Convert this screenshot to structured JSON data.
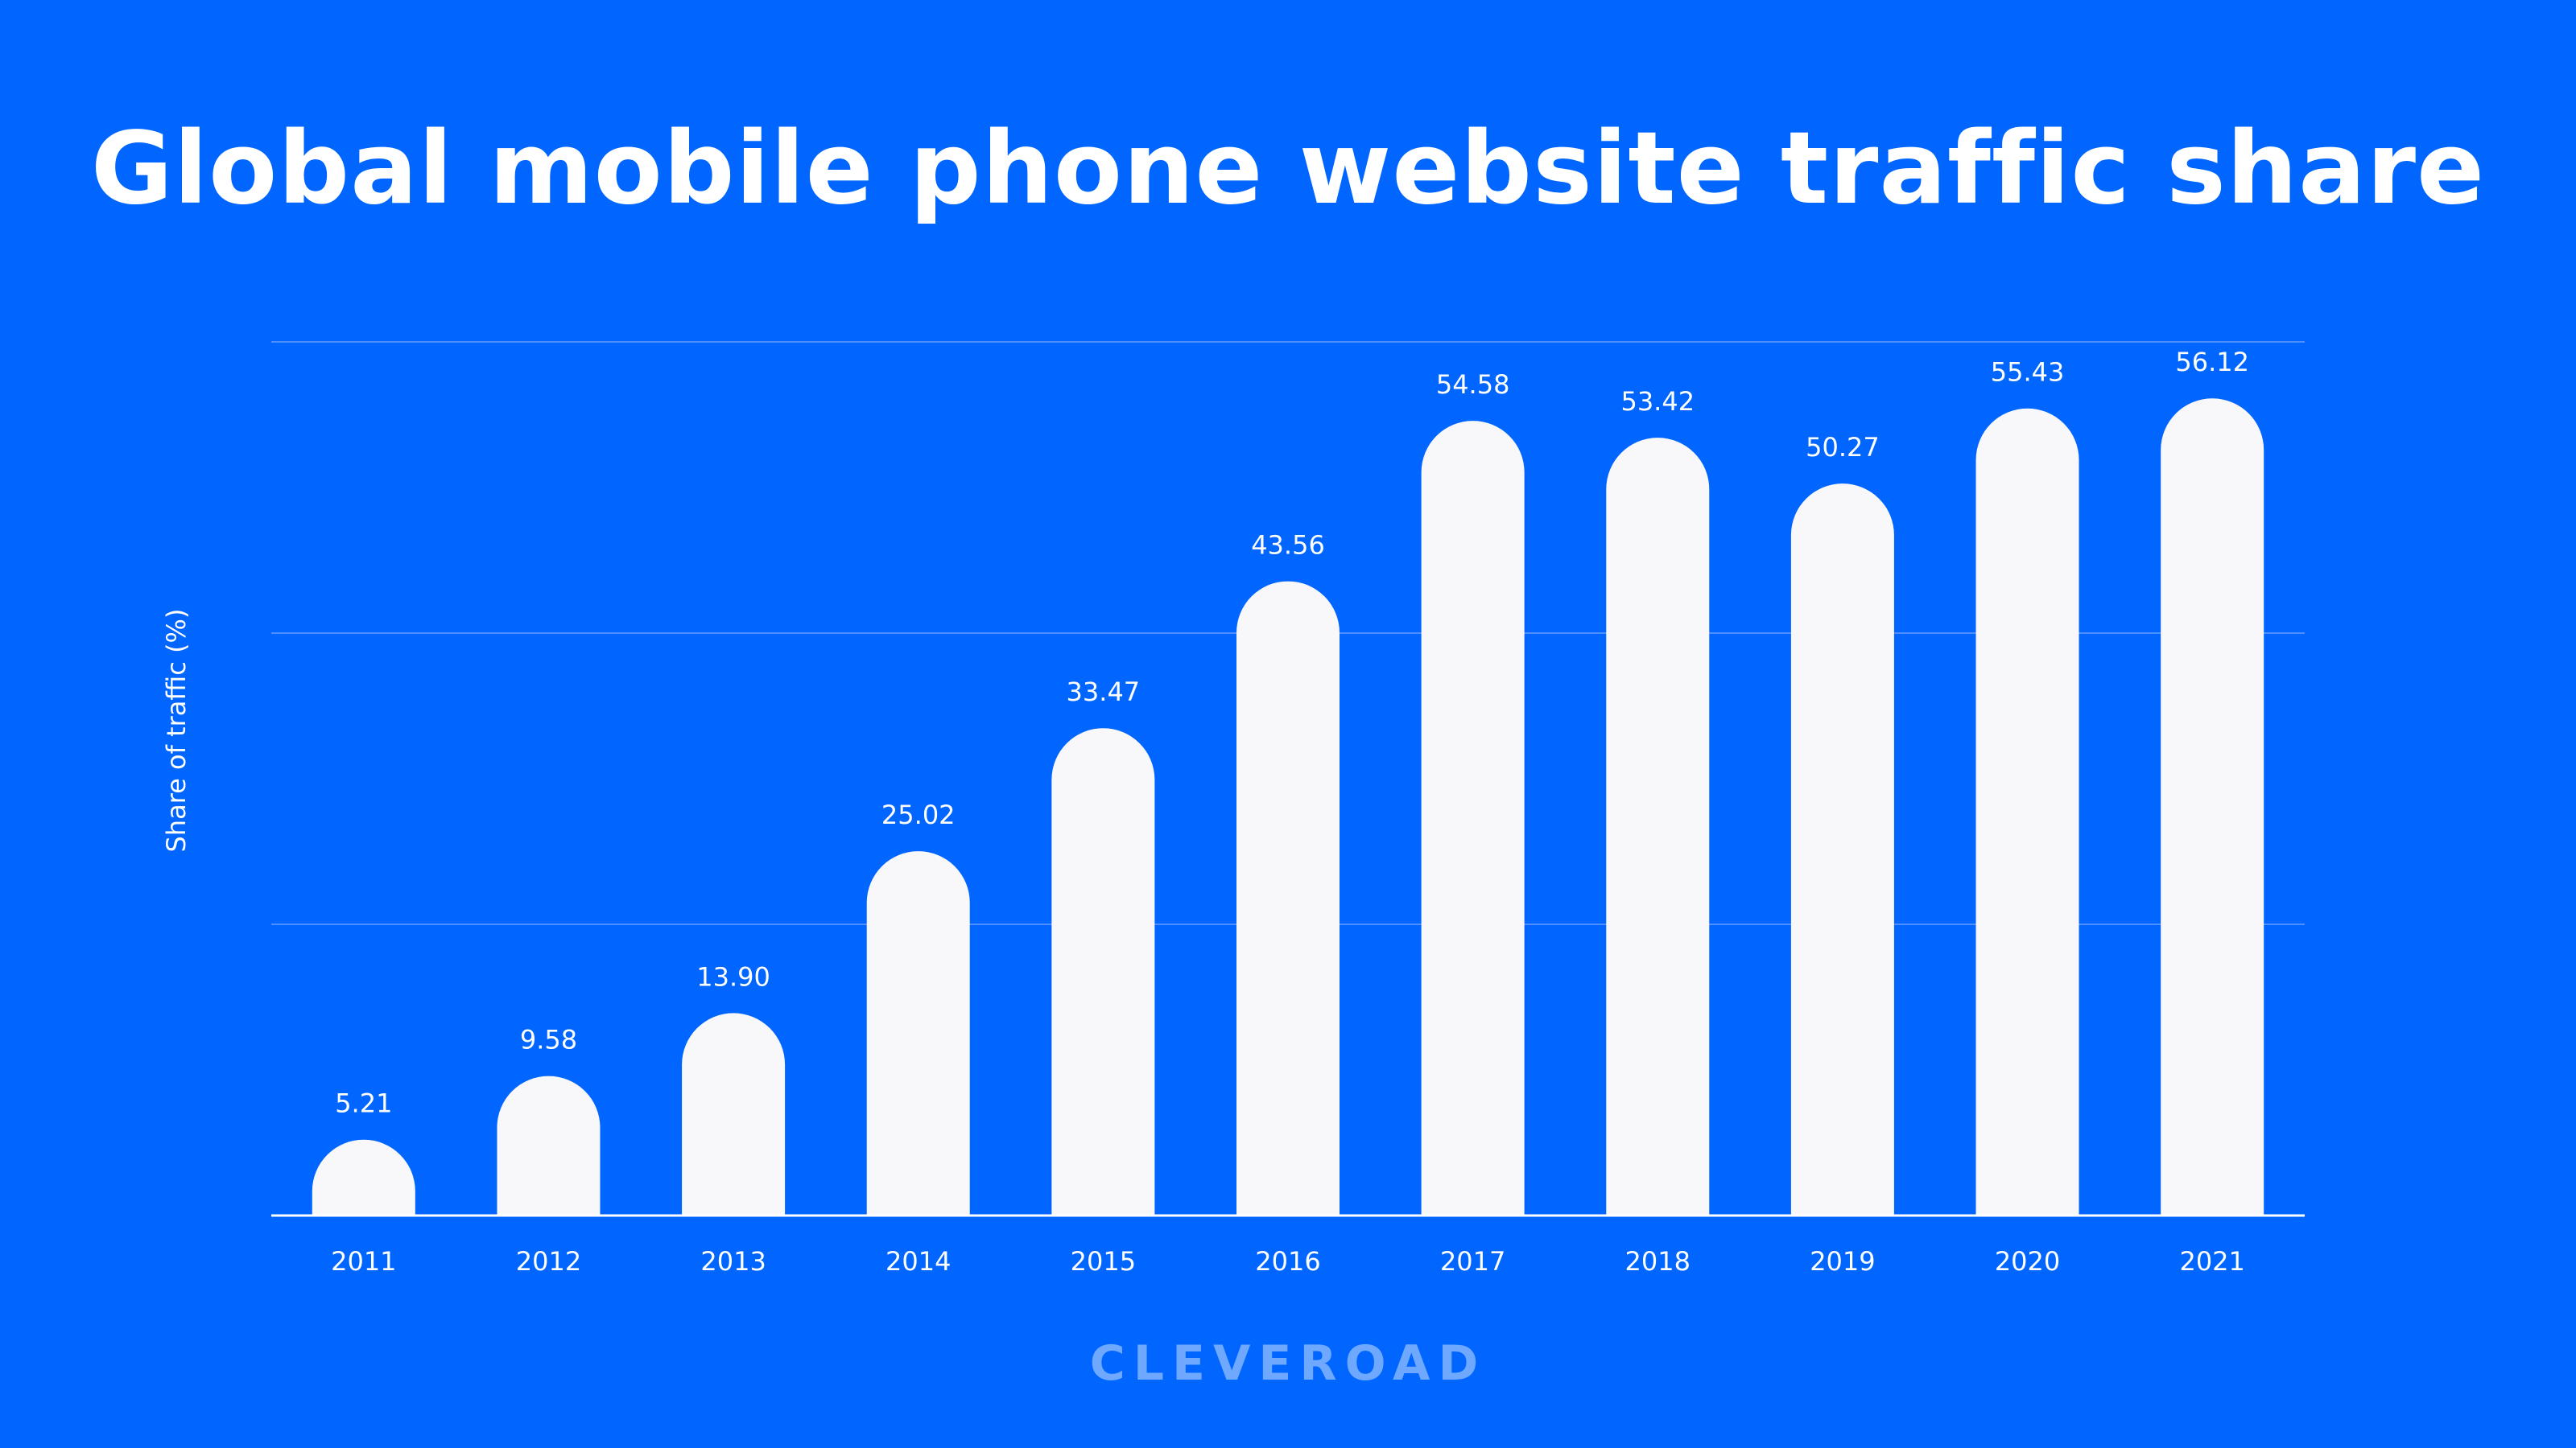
{
  "colors": {
    "background": "#0066FF",
    "bar": "#F8F8FA",
    "text": "#FFFFFF",
    "gridline": "#4D8FFF",
    "brand": "#6FA8FF"
  },
  "brand": {
    "logo_text": "CLEVEROAD"
  },
  "chart_data": {
    "type": "bar",
    "title": "Global mobile phone website traffic share",
    "xlabel": "",
    "ylabel": "Share of traffic (%)",
    "categories": [
      "2011",
      "2012",
      "2013",
      "2014",
      "2015",
      "2016",
      "2017",
      "2018",
      "2019",
      "2020",
      "2021"
    ],
    "values": [
      5.21,
      9.58,
      13.9,
      25.02,
      33.47,
      43.56,
      54.58,
      53.42,
      50.27,
      55.43,
      56.12
    ],
    "data_labels": [
      "5.21",
      "9.58",
      "13.90",
      "25.02",
      "33.47",
      "43.56",
      "54.58",
      "53.42",
      "50.27",
      "55.43",
      "56.12"
    ],
    "ylim": [
      0,
      60
    ],
    "gridlines": [
      20,
      40,
      60
    ],
    "grid": true,
    "legend": "none",
    "y_tick_labels_shown": false
  }
}
